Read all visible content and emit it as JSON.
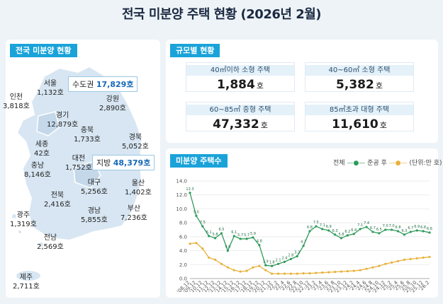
{
  "title": "전국 미분양 주택 현황  (2026년 2월)",
  "map_panel": {
    "header": "전국 미분양 현황",
    "regions": [
      {
        "name": "서울",
        "value": "1,132호"
      },
      {
        "name": "인천",
        "value": "3,818호"
      },
      {
        "name": "경기",
        "value": "12,879호"
      },
      {
        "name": "강원",
        "value": "2,890호"
      },
      {
        "name": "충북",
        "value": "1,733호"
      },
      {
        "name": "경북",
        "value": "5,052호"
      },
      {
        "name": "세종",
        "value": "42호"
      },
      {
        "name": "대전",
        "value": "1,752호"
      },
      {
        "name": "충남",
        "value": "8,146호"
      },
      {
        "name": "대구",
        "value": "5,256호"
      },
      {
        "name": "울산",
        "value": "1,402호"
      },
      {
        "name": "전북",
        "value": "2,416호"
      },
      {
        "name": "경남",
        "value": "5,855호"
      },
      {
        "name": "부산",
        "value": "7,236호"
      },
      {
        "name": "광주",
        "value": "1,319호"
      },
      {
        "name": "전남",
        "value": "2,569호"
      },
      {
        "name": "제주",
        "value": "2,711호"
      }
    ],
    "capital": {
      "label": "수도권",
      "value": "17,829호"
    },
    "provinces": {
      "label": "지방",
      "value": "48,379호"
    }
  },
  "size_panel": {
    "header": "규모별 현황",
    "cells": [
      {
        "label": "40㎡이하 소형 주택",
        "value": "1,884",
        "unit": "호"
      },
      {
        "label": "40~60㎡ 소형 주택",
        "value": "5,382",
        "unit": "호"
      },
      {
        "label": "60~85㎡ 중형 주택",
        "value": "47,332",
        "unit": "호"
      },
      {
        "label": "85㎡초과 대형 주택",
        "value": "11,610",
        "unit": "호"
      }
    ]
  },
  "trend_panel": {
    "header": "미분양 주택수",
    "legend_total": "전체",
    "legend_completed": "준공 후",
    "unit_note": "(단위:만 호)",
    "colors": {
      "total": "#2e9b5b",
      "completed": "#e8b23c"
    }
  },
  "chart_data": {
    "type": "line",
    "title": "미분양 주택수",
    "ylabel": "(단위:만 호)",
    "ylim": [
      0,
      14
    ],
    "yticks": [
      "0.0",
      "2.0",
      "4.0",
      "6.0",
      "8.0",
      "10.0",
      "12.0",
      "14.0"
    ],
    "xticks": [
      "'08.12",
      "'09.12",
      "'10.12",
      "'11.12",
      "'12.12",
      "'13.12",
      "'14.12",
      "'15.12",
      "'16.12",
      "'17.12",
      "'18.12",
      "'19.12",
      "'20.12",
      "'21.12",
      "'22.2",
      "'22.4",
      "'22.6",
      "'22.8",
      "'22.10",
      "'22.12",
      "'23.2",
      "'23.4",
      "'23.6",
      "'23.8",
      "'23.10",
      "'23.12",
      "'24.2",
      "'24.4",
      "'24.6",
      "'24.8",
      "'24.10",
      "'24.12",
      "'25.2",
      "'25.4",
      "'25.6",
      "'25.8",
      "'25.10",
      "'25.12",
      "'26.2"
    ],
    "series": [
      {
        "name": "전체",
        "values": [
          12.3,
          9.0,
          7.5,
          6.1,
          5.8,
          6.5,
          4.0,
          6.1,
          5.7,
          5.7,
          5.9,
          4.8,
          1.9,
          1.8,
          2.1,
          2.4,
          2.8,
          3.2,
          4.7,
          6.8,
          7.5,
          7.1,
          6.9,
          6.3,
          5.8,
          6.2,
          6.4,
          7.1,
          7.4,
          6.7,
          6.5,
          7.0,
          7.0,
          6.8,
          6.3,
          6.7,
          6.9,
          6.8,
          6.6
        ]
      },
      {
        "name": "준공 후",
        "values": [
          5.0,
          5.1,
          4.3,
          3.0,
          2.7,
          2.1,
          1.6,
          1.2,
          1.0,
          1.1,
          1.6,
          1.8,
          1.2,
          0.7,
          0.7,
          0.7,
          0.7,
          0.7,
          0.75,
          0.75,
          0.8,
          0.85,
          0.9,
          0.95,
          1.0,
          1.05,
          1.1,
          1.2,
          1.4,
          1.6,
          1.8,
          2.1,
          2.3,
          2.5,
          2.7,
          2.8,
          2.9,
          3.0,
          3.1
        ]
      }
    ],
    "labels_total": [
      "12.3",
      "9.0",
      "7.5",
      "6.1",
      "5.8",
      "6.5",
      "4.0",
      "6.1",
      "5.7",
      "5.7",
      "5.9",
      "4.8",
      "1.9",
      "1.8",
      "2.1",
      "2.4",
      "2.8",
      "3.2",
      "4.7",
      "6.8",
      "7.5",
      "7.1",
      "6.9",
      "6.3",
      "5.8",
      "6.2",
      "6.4",
      "7.1",
      "7.4",
      "6.7",
      "6.5",
      "7.0",
      "7.0",
      "6.8",
      "6.3",
      "6.7",
      "6.9",
      "6.8",
      "6.6"
    ]
  }
}
